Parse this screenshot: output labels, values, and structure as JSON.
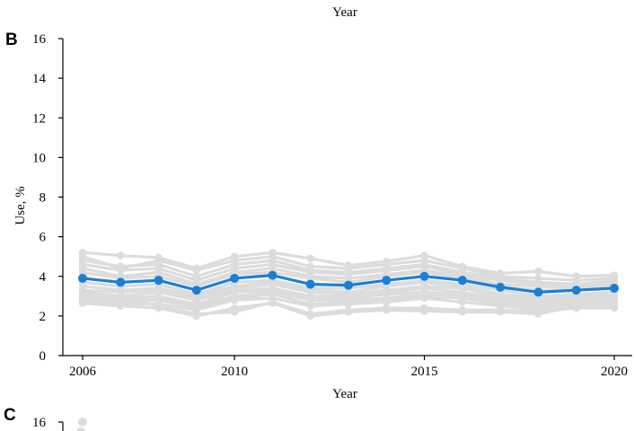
{
  "top_xlabel": "Year",
  "chart_data": {
    "type": "line",
    "panel_label": "B",
    "xlabel": "Year",
    "ylabel": "Use, %",
    "xlim": [
      2006,
      2020
    ],
    "ylim": [
      0,
      16
    ],
    "xticks": [
      2006,
      2010,
      2015,
      2020
    ],
    "yticks": [
      0,
      2,
      4,
      6,
      8,
      10,
      12,
      14,
      16
    ],
    "x": [
      2006,
      2007,
      2008,
      2009,
      2010,
      2011,
      2012,
      2013,
      2014,
      2015,
      2016,
      2017,
      2018,
      2019,
      2020
    ],
    "highlight_color": "#1b7fd4",
    "background_color": "#dcdcdc",
    "highlight_series": {
      "values": [
        3.9,
        3.7,
        3.8,
        3.3,
        3.9,
        4.05,
        3.6,
        3.55,
        3.8,
        4.0,
        3.8,
        3.45,
        3.2,
        3.3,
        3.4
      ]
    },
    "background_series": [
      {
        "values": [
          5.2,
          5.05,
          4.95,
          4.4,
          5.0,
          5.2,
          4.9,
          4.55,
          4.75,
          5.05,
          4.5,
          4.15,
          4.25,
          4.0,
          4.05
        ]
      },
      {
        "values": [
          5.0,
          4.4,
          4.8,
          4.3,
          4.8,
          5.0,
          4.5,
          4.4,
          4.6,
          4.8,
          4.4,
          4.0,
          3.9,
          3.8,
          3.9
        ]
      },
      {
        "values": [
          4.8,
          4.5,
          4.6,
          4.0,
          4.6,
          4.8,
          4.3,
          4.2,
          4.4,
          4.6,
          4.2,
          3.9,
          3.7,
          3.6,
          3.8
        ]
      },
      {
        "values": [
          4.6,
          4.3,
          4.4,
          3.8,
          4.4,
          4.6,
          4.2,
          4.1,
          4.3,
          4.5,
          4.1,
          3.8,
          3.6,
          3.5,
          3.7
        ]
      },
      {
        "values": [
          4.4,
          4.0,
          4.2,
          3.6,
          4.2,
          4.4,
          4.0,
          3.9,
          4.1,
          4.3,
          4.0,
          3.6,
          3.5,
          3.4,
          3.6
        ]
      },
      {
        "values": [
          4.2,
          3.9,
          4.0,
          3.5,
          4.1,
          4.2,
          3.9,
          3.7,
          4.0,
          4.2,
          3.9,
          3.5,
          3.3,
          3.3,
          3.5
        ]
      },
      {
        "values": [
          3.7,
          3.5,
          3.6,
          3.1,
          3.7,
          3.8,
          3.4,
          3.4,
          3.6,
          3.8,
          3.6,
          3.3,
          3.0,
          3.1,
          3.2
        ]
      },
      {
        "values": [
          3.5,
          3.3,
          3.4,
          3.0,
          3.5,
          3.7,
          3.3,
          3.2,
          3.5,
          3.7,
          3.5,
          3.1,
          2.9,
          3.0,
          3.1
        ]
      },
      {
        "values": [
          3.3,
          3.2,
          3.3,
          2.9,
          3.4,
          3.6,
          3.2,
          3.1,
          3.3,
          3.5,
          3.4,
          3.0,
          2.8,
          2.9,
          3.0
        ]
      },
      {
        "values": [
          3.2,
          3.0,
          3.2,
          2.8,
          3.3,
          3.4,
          3.0,
          3.0,
          3.2,
          3.4,
          3.2,
          2.9,
          2.7,
          2.8,
          2.9
        ]
      },
      {
        "values": [
          3.0,
          2.9,
          3.0,
          2.6,
          3.2,
          3.3,
          2.9,
          2.9,
          3.1,
          3.2,
          3.1,
          2.8,
          2.6,
          2.7,
          2.8
        ]
      },
      {
        "values": [
          2.9,
          2.8,
          2.9,
          2.5,
          3.0,
          3.2,
          2.8,
          2.8,
          2.9,
          3.1,
          3.0,
          2.7,
          2.5,
          2.6,
          2.7
        ]
      },
      {
        "values": [
          2.8,
          2.7,
          2.8,
          2.4,
          2.9,
          3.1,
          2.6,
          2.7,
          2.8,
          3.0,
          2.9,
          2.6,
          2.4,
          2.5,
          2.6
        ]
      },
      {
        "values": [
          2.7,
          2.6,
          2.6,
          2.3,
          2.8,
          2.9,
          2.5,
          2.6,
          2.7,
          2.9,
          2.7,
          2.5,
          2.3,
          2.4,
          2.5
        ]
      },
      {
        "values": [
          2.65,
          2.5,
          2.4,
          2.0,
          2.4,
          2.65,
          2.0,
          2.2,
          2.3,
          2.25,
          2.2,
          2.2,
          2.1,
          2.5,
          2.6
        ]
      },
      {
        "values": [
          3.1,
          2.9,
          2.5,
          2.1,
          2.2,
          2.7,
          2.1,
          2.3,
          2.4,
          2.4,
          2.3,
          2.3,
          2.2,
          2.4,
          2.4
        ]
      }
    ]
  },
  "next_panel": {
    "label": "C",
    "ytick_top": "16",
    "first_point": 16
  }
}
